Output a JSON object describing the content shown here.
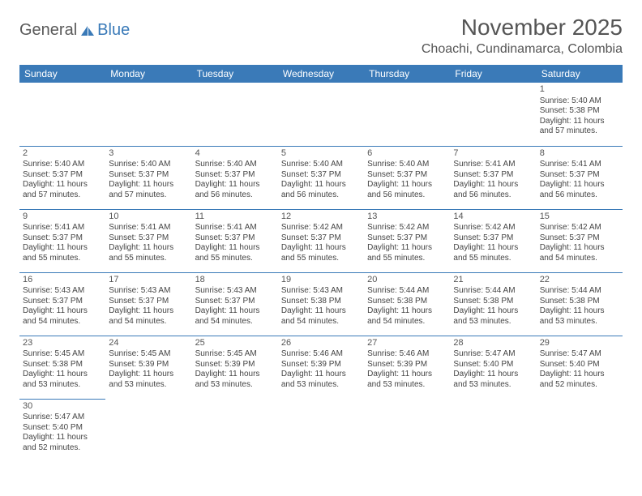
{
  "logo": {
    "part1": "General",
    "part2": "Blue"
  },
  "title": "November 2025",
  "location": "Choachi, Cundinamarca, Colombia",
  "colors": {
    "header_bg": "#3a7ab8",
    "border": "#3a7ab8",
    "text": "#444"
  },
  "day_headers": [
    "Sunday",
    "Monday",
    "Tuesday",
    "Wednesday",
    "Thursday",
    "Friday",
    "Saturday"
  ],
  "weeks": [
    [
      null,
      null,
      null,
      null,
      null,
      null,
      {
        "n": "1",
        "sr": "5:40 AM",
        "ss": "5:38 PM",
        "dl": "11 hours and 57 minutes."
      }
    ],
    [
      {
        "n": "2",
        "sr": "5:40 AM",
        "ss": "5:37 PM",
        "dl": "11 hours and 57 minutes."
      },
      {
        "n": "3",
        "sr": "5:40 AM",
        "ss": "5:37 PM",
        "dl": "11 hours and 57 minutes."
      },
      {
        "n": "4",
        "sr": "5:40 AM",
        "ss": "5:37 PM",
        "dl": "11 hours and 56 minutes."
      },
      {
        "n": "5",
        "sr": "5:40 AM",
        "ss": "5:37 PM",
        "dl": "11 hours and 56 minutes."
      },
      {
        "n": "6",
        "sr": "5:40 AM",
        "ss": "5:37 PM",
        "dl": "11 hours and 56 minutes."
      },
      {
        "n": "7",
        "sr": "5:41 AM",
        "ss": "5:37 PM",
        "dl": "11 hours and 56 minutes."
      },
      {
        "n": "8",
        "sr": "5:41 AM",
        "ss": "5:37 PM",
        "dl": "11 hours and 56 minutes."
      }
    ],
    [
      {
        "n": "9",
        "sr": "5:41 AM",
        "ss": "5:37 PM",
        "dl": "11 hours and 55 minutes."
      },
      {
        "n": "10",
        "sr": "5:41 AM",
        "ss": "5:37 PM",
        "dl": "11 hours and 55 minutes."
      },
      {
        "n": "11",
        "sr": "5:41 AM",
        "ss": "5:37 PM",
        "dl": "11 hours and 55 minutes."
      },
      {
        "n": "12",
        "sr": "5:42 AM",
        "ss": "5:37 PM",
        "dl": "11 hours and 55 minutes."
      },
      {
        "n": "13",
        "sr": "5:42 AM",
        "ss": "5:37 PM",
        "dl": "11 hours and 55 minutes."
      },
      {
        "n": "14",
        "sr": "5:42 AM",
        "ss": "5:37 PM",
        "dl": "11 hours and 55 minutes."
      },
      {
        "n": "15",
        "sr": "5:42 AM",
        "ss": "5:37 PM",
        "dl": "11 hours and 54 minutes."
      }
    ],
    [
      {
        "n": "16",
        "sr": "5:43 AM",
        "ss": "5:37 PM",
        "dl": "11 hours and 54 minutes."
      },
      {
        "n": "17",
        "sr": "5:43 AM",
        "ss": "5:37 PM",
        "dl": "11 hours and 54 minutes."
      },
      {
        "n": "18",
        "sr": "5:43 AM",
        "ss": "5:37 PM",
        "dl": "11 hours and 54 minutes."
      },
      {
        "n": "19",
        "sr": "5:43 AM",
        "ss": "5:38 PM",
        "dl": "11 hours and 54 minutes."
      },
      {
        "n": "20",
        "sr": "5:44 AM",
        "ss": "5:38 PM",
        "dl": "11 hours and 54 minutes."
      },
      {
        "n": "21",
        "sr": "5:44 AM",
        "ss": "5:38 PM",
        "dl": "11 hours and 53 minutes."
      },
      {
        "n": "22",
        "sr": "5:44 AM",
        "ss": "5:38 PM",
        "dl": "11 hours and 53 minutes."
      }
    ],
    [
      {
        "n": "23",
        "sr": "5:45 AM",
        "ss": "5:38 PM",
        "dl": "11 hours and 53 minutes."
      },
      {
        "n": "24",
        "sr": "5:45 AM",
        "ss": "5:39 PM",
        "dl": "11 hours and 53 minutes."
      },
      {
        "n": "25",
        "sr": "5:45 AM",
        "ss": "5:39 PM",
        "dl": "11 hours and 53 minutes."
      },
      {
        "n": "26",
        "sr": "5:46 AM",
        "ss": "5:39 PM",
        "dl": "11 hours and 53 minutes."
      },
      {
        "n": "27",
        "sr": "5:46 AM",
        "ss": "5:39 PM",
        "dl": "11 hours and 53 minutes."
      },
      {
        "n": "28",
        "sr": "5:47 AM",
        "ss": "5:40 PM",
        "dl": "11 hours and 53 minutes."
      },
      {
        "n": "29",
        "sr": "5:47 AM",
        "ss": "5:40 PM",
        "dl": "11 hours and 52 minutes."
      }
    ],
    [
      {
        "n": "30",
        "sr": "5:47 AM",
        "ss": "5:40 PM",
        "dl": "11 hours and 52 minutes."
      },
      null,
      null,
      null,
      null,
      null,
      null
    ]
  ],
  "labels": {
    "sunrise": "Sunrise:",
    "sunset": "Sunset:",
    "daylight": "Daylight:"
  }
}
